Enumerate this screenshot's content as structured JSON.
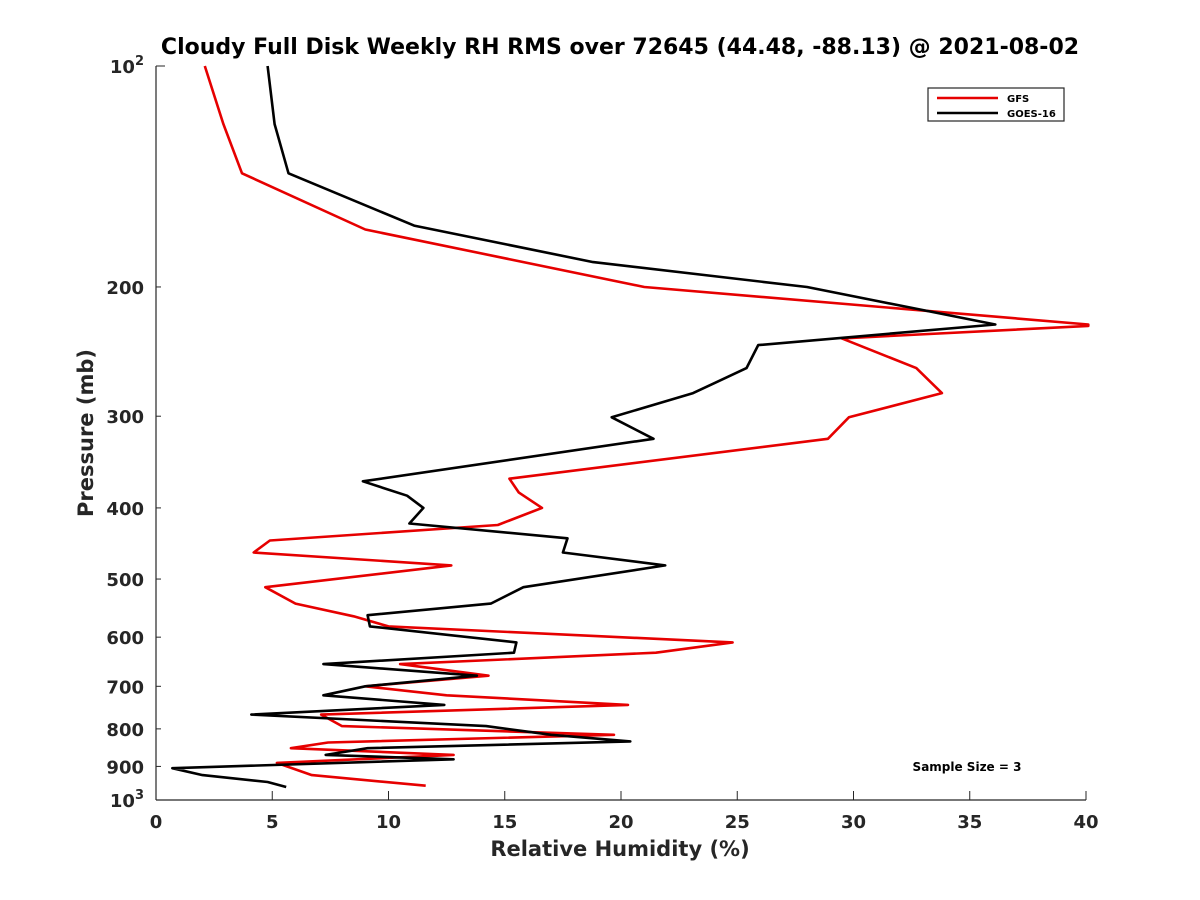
{
  "chart_data": {
    "type": "line",
    "title": "Cloudy Full Disk Weekly RH RMS over 72645 (44.48, -88.13) @ 2021-08-02",
    "xlabel": "Relative Humidity (%)",
    "ylabel": "Pressure (mb)",
    "xlim": [
      0,
      40
    ],
    "ylim": [
      100,
      1000
    ],
    "yscale": "log",
    "yreversed": true,
    "grid": false,
    "legend_position": "top-right",
    "xticks": [
      0,
      5,
      10,
      15,
      20,
      25,
      30,
      35,
      40
    ],
    "xtick_labels": [
      "0",
      "5",
      "10",
      "15",
      "20",
      "25",
      "30",
      "35",
      "40"
    ],
    "yticks": [
      {
        "value": 100,
        "base": "10",
        "exp": "2"
      },
      {
        "value": 200,
        "label": "200"
      },
      {
        "value": 300,
        "label": "300"
      },
      {
        "value": 400,
        "label": "400"
      },
      {
        "value": 500,
        "label": "500"
      },
      {
        "value": 600,
        "label": "600"
      },
      {
        "value": 700,
        "label": "700"
      },
      {
        "value": 800,
        "label": "800"
      },
      {
        "value": 900,
        "label": "900"
      },
      {
        "value": 1000,
        "base": "10",
        "exp": "3"
      }
    ],
    "annotation": "Sample Size = 3",
    "series": [
      {
        "name": "GFS",
        "color": "#e60000",
        "points": [
          [
            2.1,
            100
          ],
          [
            2.9,
            120
          ],
          [
            3.7,
            140
          ],
          [
            9.0,
            167
          ],
          [
            21,
            200
          ],
          [
            40.1,
            225
          ],
          [
            40.1,
            226
          ],
          [
            29.5,
            235
          ],
          [
            32.7,
            258
          ],
          [
            33.8,
            279
          ],
          [
            29.8,
            301
          ],
          [
            28.9,
            322
          ],
          [
            15.2,
            365
          ],
          [
            15.6,
            381
          ],
          [
            16.6,
            400
          ],
          [
            14.7,
            422
          ],
          [
            4.9,
            443
          ],
          [
            4.2,
            460
          ],
          [
            12.7,
            479
          ],
          [
            4.7,
            513
          ],
          [
            6.0,
            540
          ],
          [
            8.5,
            562
          ],
          [
            10.0,
            580
          ],
          [
            24.8,
            610
          ],
          [
            21.5,
            630
          ],
          [
            10.5,
            653
          ],
          [
            14.3,
            677
          ],
          [
            9.0,
            700
          ],
          [
            12.5,
            720
          ],
          [
            20.3,
            742
          ],
          [
            7.1,
            765
          ],
          [
            8.0,
            793
          ],
          [
            19.7,
            815
          ],
          [
            7.4,
            835
          ],
          [
            5.8,
            850
          ],
          [
            12.8,
            868
          ],
          [
            5.2,
            890
          ],
          [
            6.7,
            925
          ],
          [
            11.6,
            956
          ]
        ]
      },
      {
        "name": "GOES-16",
        "color": "#000000",
        "points": [
          [
            4.8,
            100
          ],
          [
            5.1,
            120
          ],
          [
            5.7,
            140
          ],
          [
            11.1,
            165
          ],
          [
            18.8,
            185
          ],
          [
            28,
            200
          ],
          [
            36.1,
            225
          ],
          [
            25.9,
            240
          ],
          [
            25.4,
            258
          ],
          [
            23.1,
            279
          ],
          [
            19.6,
            301
          ],
          [
            21.4,
            322
          ],
          [
            8.9,
            368
          ],
          [
            10.8,
            385
          ],
          [
            11.5,
            400
          ],
          [
            10.9,
            420
          ],
          [
            17.7,
            440
          ],
          [
            17.5,
            460
          ],
          [
            21.9,
            479
          ],
          [
            15.8,
            513
          ],
          [
            14.4,
            540
          ],
          [
            9.1,
            560
          ],
          [
            9.2,
            580
          ],
          [
            15.5,
            610
          ],
          [
            15.4,
            630
          ],
          [
            7.2,
            653
          ],
          [
            13.8,
            677
          ],
          [
            9.0,
            700
          ],
          [
            7.2,
            720
          ],
          [
            12.4,
            742
          ],
          [
            4.1,
            765
          ],
          [
            14.2,
            793
          ],
          [
            17.0,
            815
          ],
          [
            20.4,
            832
          ],
          [
            9.1,
            850
          ],
          [
            7.3,
            868
          ],
          [
            12.8,
            880
          ],
          [
            0.7,
            905
          ],
          [
            2.0,
            925
          ],
          [
            4.8,
            945
          ],
          [
            5.6,
            960
          ]
        ]
      }
    ]
  }
}
